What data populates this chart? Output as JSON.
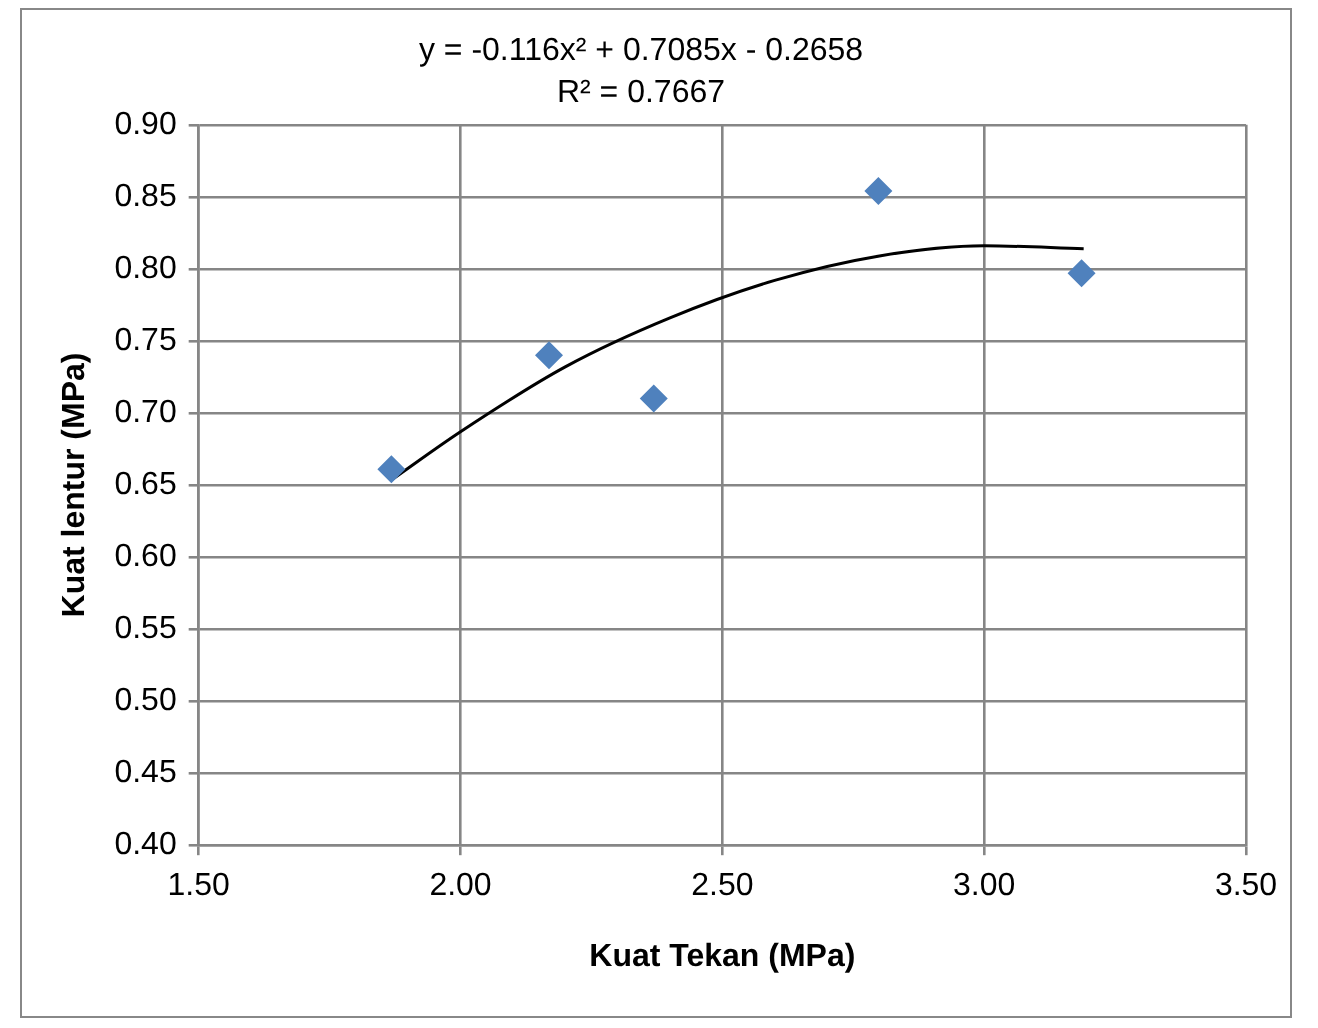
{
  "chart_data": {
    "type": "scatter",
    "title": "y = -0.116x² + 0.7085x - 0.2658",
    "subtitle": "R² = 0.7667",
    "xlabel": "Kuat Tekan (MPa)",
    "ylabel": "Kuat lentur (MPa)",
    "series": [
      {
        "type": "scatter",
        "color": "#4f81bd",
        "x": [
          1.868,
          2.169,
          2.369,
          2.798,
          3.186
        ],
        "values": [
          0.661,
          0.74,
          0.71,
          0.854,
          0.797
        ],
        "marker": "diamond"
      },
      {
        "type": "line",
        "color": "#000000",
        "x": [
          1.87,
          2.0,
          2.2,
          2.4,
          2.6,
          2.8,
          3.0,
          3.19
        ],
        "values": [
          0.654,
          0.687,
          0.732,
          0.766,
          0.792,
          0.809,
          0.816,
          0.814
        ],
        "marker": "none",
        "line_style": "solid"
      }
    ],
    "xlim": [
      1.5,
      3.5
    ],
    "ylim": [
      0.4,
      0.9
    ],
    "xticks": [
      {
        "value": 1.5,
        "label": "1.50"
      },
      {
        "value": 2.0,
        "label": "2.00"
      },
      {
        "value": 2.5,
        "label": "2.50"
      },
      {
        "value": 3.0,
        "label": "3.00"
      },
      {
        "value": 3.5,
        "label": "3.50"
      }
    ],
    "yticks": [
      {
        "value": 0.4,
        "label": "0.40"
      },
      {
        "value": 0.45,
        "label": "0.45"
      },
      {
        "value": 0.5,
        "label": "0.50"
      },
      {
        "value": 0.55,
        "label": "0.55"
      },
      {
        "value": 0.6,
        "label": "0.60"
      },
      {
        "value": 0.65,
        "label": "0.65"
      },
      {
        "value": 0.7,
        "label": "0.70"
      },
      {
        "value": 0.75,
        "label": "0.75"
      },
      {
        "value": 0.8,
        "label": "0.80"
      },
      {
        "value": 0.85,
        "label": "0.85"
      },
      {
        "value": 0.9,
        "label": "0.90"
      }
    ],
    "grid": true,
    "legend": false
  }
}
